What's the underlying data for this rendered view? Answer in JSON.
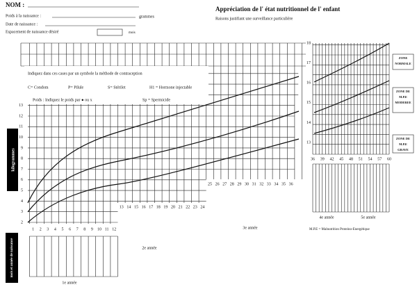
{
  "header": {
    "name_label": "NOM :",
    "birth_weight_label": "Poids à la naissance :",
    "grams_unit": "grammes",
    "birth_date_label": "Date de naissance :",
    "spacing_label": "Espacement de naissance désiré",
    "months_unit": "mois",
    "title": "Appréciation de l' état nutritionnel de l' enfant",
    "subtitle": "Raisons justifiant une surveillance particulière"
  },
  "instructions": {
    "heading": "Indiquez dans ces cases par un symbole la méthode de contraception",
    "methods": [
      "C= Condom",
      "P= Pilule",
      "S= Stérilet",
      "H1 = Hormone injectable"
    ],
    "weight_note": "Poids : Indiquez le poids par ● ou x",
    "spermicide": "Sp = Spermicide"
  },
  "main_chart": {
    "y_axis_label": "kilogrammes",
    "y_labels": [
      2,
      3,
      4,
      5,
      6,
      7,
      8,
      9,
      10,
      11,
      12,
      13
    ],
    "year1_months": [
      1,
      2,
      3,
      4,
      5,
      6,
      7,
      8,
      9,
      10,
      11,
      12
    ],
    "year2_months": [
      13,
      14,
      15,
      16,
      17,
      18,
      19,
      20,
      21,
      22,
      23,
      24
    ],
    "year3_months": [
      25,
      26,
      27,
      28,
      29,
      30,
      31,
      32,
      33,
      34,
      35,
      36
    ],
    "year1_label": "1e année",
    "year2_label": "2e année",
    "year3_label": "3e année",
    "birth_label": "mois et année de naissance"
  },
  "right_chart": {
    "y_labels": [
      13,
      14,
      15,
      16,
      17,
      18
    ],
    "x_labels": [
      36,
      39,
      42,
      45,
      48,
      51,
      54,
      57,
      60
    ],
    "zones": [
      [
        "ZONE",
        "NORMALE"
      ],
      [
        "ZONE DE",
        "M.P.E",
        "MODEREE"
      ],
      [
        "ZONE DE",
        "M.P.E",
        "GRAVE"
      ]
    ],
    "year4_label": "4e année",
    "year5_label": "5e année"
  },
  "footnote": "M.P.E = Malnutrition Proteino-Energétique"
}
